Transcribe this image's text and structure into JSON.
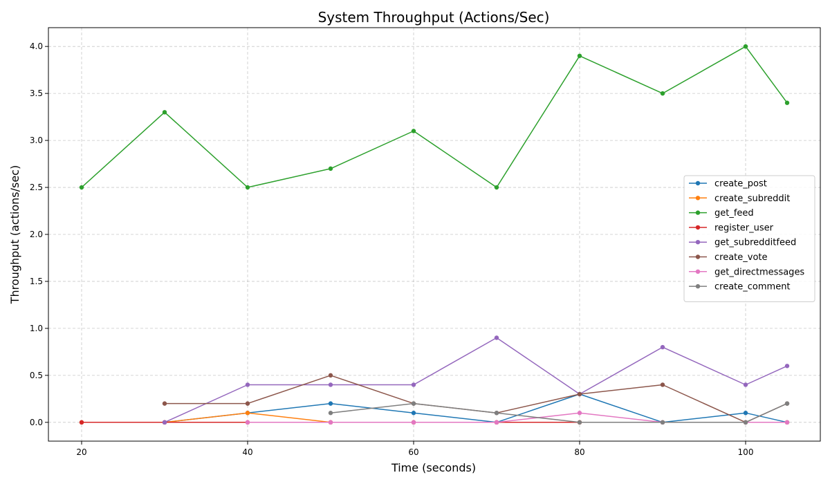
{
  "chart_data": {
    "type": "line",
    "title": "System Throughput (Actions/Sec)",
    "xlabel": "Time (seconds)",
    "ylabel": "Throughput (actions/sec)",
    "xlim": [
      16,
      109
    ],
    "ylim": [
      -0.2,
      4.2
    ],
    "x_ticks": [
      20,
      40,
      60,
      80,
      100
    ],
    "x_tick_labels": [
      "20",
      "40",
      "60",
      "80",
      "100"
    ],
    "y_ticks": [
      0.0,
      0.5,
      1.0,
      1.5,
      2.0,
      2.5,
      3.0,
      3.5,
      4.0
    ],
    "y_tick_labels": [
      "0.0",
      "0.5",
      "1.0",
      "1.5",
      "2.0",
      "2.5",
      "3.0",
      "3.5",
      "4.0"
    ],
    "grid": true,
    "legend_position": "center-right",
    "series": [
      {
        "name": "create_post",
        "color": "#1f77b4",
        "x": [
          30,
          40,
          50,
          60,
          70,
          80,
          90,
          100,
          105
        ],
        "y": [
          0.0,
          0.1,
          0.2,
          0.1,
          0.0,
          0.3,
          0.0,
          0.1,
          0.0
        ]
      },
      {
        "name": "create_subreddit",
        "color": "#ff7f0e",
        "x": [
          20,
          30,
          40,
          50,
          60,
          70,
          80,
          90,
          100,
          105
        ],
        "y": [
          0.0,
          0.0,
          0.1,
          0.0,
          0.0,
          0.0,
          0.0,
          0.0,
          0.0,
          0.0
        ]
      },
      {
        "name": "get_feed",
        "color": "#2ca02c",
        "x": [
          20,
          30,
          40,
          50,
          60,
          70,
          80,
          90,
          100,
          105
        ],
        "y": [
          2.5,
          3.3,
          2.5,
          2.7,
          3.1,
          2.5,
          3.9,
          3.5,
          4.0,
          3.4
        ]
      },
      {
        "name": "register_user",
        "color": "#d62728",
        "x": [
          20,
          30,
          40,
          50,
          60,
          70,
          80
        ],
        "y": [
          0.0,
          0.0,
          0.0,
          0.0,
          0.0,
          0.0,
          0.0
        ]
      },
      {
        "name": "get_subredditfeed",
        "color": "#9467bd",
        "x": [
          30,
          40,
          50,
          60,
          70,
          80,
          90,
          100,
          105
        ],
        "y": [
          0.0,
          0.4,
          0.4,
          0.4,
          0.9,
          0.3,
          0.8,
          0.4,
          0.6
        ]
      },
      {
        "name": "create_vote",
        "color": "#8c564b",
        "x": [
          30,
          40,
          50,
          60,
          70,
          80,
          90,
          100,
          105
        ],
        "y": [
          0.2,
          0.2,
          0.5,
          0.2,
          0.1,
          0.3,
          0.4,
          0.0,
          0.2
        ]
      },
      {
        "name": "get_directmessages",
        "color": "#e377c2",
        "x": [
          40,
          50,
          60,
          70,
          80,
          90,
          100,
          105
        ],
        "y": [
          0.0,
          0.0,
          0.0,
          0.0,
          0.1,
          0.0,
          0.0,
          0.0
        ]
      },
      {
        "name": "create_comment",
        "color": "#7f7f7f",
        "x": [
          50,
          60,
          70,
          80,
          90,
          100,
          105
        ],
        "y": [
          0.1,
          0.2,
          0.1,
          0.0,
          0.0,
          0.0,
          0.2
        ]
      }
    ]
  }
}
